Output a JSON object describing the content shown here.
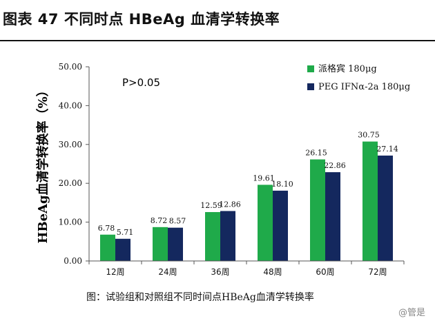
{
  "figure_title": "图表 47 不同时点 HBeAg 血清学转换率",
  "caption": "图：试验组和对照组不同时间点HBeAg血清学转换率",
  "watermark": "@管是",
  "colors": {
    "series1": "#1faa4a",
    "series2": "#14285e",
    "axis": "#555555",
    "text": "#111111"
  },
  "chart_data": {
    "type": "bar",
    "categories": [
      "12周",
      "24周",
      "36周",
      "48周",
      "60周",
      "72周"
    ],
    "series": [
      {
        "name": "派格宾 180μg",
        "values": [
          6.78,
          8.72,
          12.59,
          19.61,
          26.15,
          30.75
        ],
        "labels": [
          "6.78",
          "8.72",
          "12.59",
          "19.61",
          "26.15",
          "30.75"
        ]
      },
      {
        "name": "PEG IFNα-2a 180μg",
        "values": [
          5.71,
          8.57,
          12.86,
          18.1,
          22.86,
          27.14
        ],
        "labels": [
          "5.71",
          "8.57",
          "12.86",
          "18.10",
          "22.86",
          "27.14"
        ]
      }
    ],
    "ylabel": "HBeAg血清学转换率（%）",
    "ylim": [
      0,
      50
    ],
    "yticks": [
      "0.00",
      "10.00",
      "20.00",
      "30.00",
      "40.00",
      "50.00"
    ],
    "ytick_values": [
      0,
      10,
      20,
      30,
      40,
      50
    ],
    "annotation": "P>0.05",
    "legend_position": "top-right"
  }
}
